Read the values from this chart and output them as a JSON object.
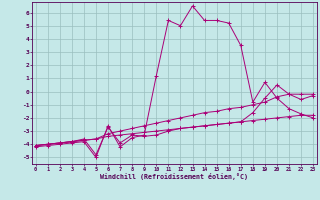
{
  "xlabel": "Windchill (Refroidissement éolien,°C)",
  "background_color": "#c5e8e8",
  "grid_color": "#9bbfbf",
  "line_color": "#aa0077",
  "x_ticks": [
    0,
    1,
    2,
    3,
    4,
    5,
    6,
    7,
    8,
    9,
    10,
    11,
    12,
    13,
    14,
    15,
    16,
    17,
    18,
    19,
    20,
    21,
    22,
    23
  ],
  "y_ticks": [
    -5,
    -4,
    -3,
    -2,
    -1,
    0,
    1,
    2,
    3,
    4,
    5,
    6
  ],
  "xlim": [
    -0.3,
    23.3
  ],
  "ylim": [
    -5.5,
    6.8
  ],
  "series": [
    {
      "x": [
        0,
        1,
        2,
        3,
        4,
        5,
        6,
        7,
        8,
        9,
        10,
        11,
        12,
        13,
        14,
        15,
        16,
        17,
        18,
        19,
        20,
        21,
        22,
        23
      ],
      "y": [
        -4.1,
        -4.0,
        -3.9,
        -3.8,
        -3.7,
        -3.6,
        -3.4,
        -3.3,
        -3.2,
        -3.1,
        -3.0,
        -2.9,
        -2.8,
        -2.7,
        -2.6,
        -2.5,
        -2.4,
        -2.3,
        -2.2,
        -2.1,
        -2.0,
        -1.9,
        -1.8,
        -1.8
      ]
    },
    {
      "x": [
        0,
        1,
        2,
        3,
        4,
        5,
        6,
        7,
        8,
        9,
        10,
        11,
        12,
        13,
        14,
        15,
        16,
        17,
        18,
        19,
        20,
        21,
        22,
        23
      ],
      "y": [
        -4.1,
        -4.0,
        -3.9,
        -3.8,
        -3.7,
        -3.6,
        -3.2,
        -3.0,
        -2.8,
        -2.6,
        -2.4,
        -2.2,
        -2.0,
        -1.8,
        -1.6,
        -1.5,
        -1.3,
        -1.2,
        -1.0,
        -0.8,
        -0.4,
        -0.2,
        -0.2,
        -0.2
      ]
    },
    {
      "x": [
        0,
        1,
        2,
        3,
        4,
        5,
        6,
        7,
        8,
        9,
        10,
        11,
        12,
        13,
        14,
        15,
        16,
        17,
        18,
        19,
        20,
        21,
        22,
        23
      ],
      "y": [
        -4.1,
        -4.0,
        -3.9,
        -3.8,
        -3.6,
        -4.8,
        -2.7,
        -3.9,
        -3.3,
        -3.4,
        -3.3,
        -3.0,
        -2.8,
        -2.7,
        -2.6,
        -2.5,
        -2.4,
        -2.3,
        -1.6,
        -0.5,
        0.5,
        -0.2,
        -0.6,
        -0.3
      ]
    },
    {
      "x": [
        0,
        1,
        2,
        3,
        4,
        5,
        6,
        7,
        8,
        9,
        10,
        11,
        12,
        13,
        14,
        15,
        16,
        17,
        18,
        19,
        20,
        21,
        22,
        23
      ],
      "y": [
        -4.2,
        -4.1,
        -4.0,
        -3.9,
        -3.8,
        -5.0,
        -2.6,
        -4.2,
        -3.5,
        -3.3,
        1.2,
        5.4,
        5.0,
        6.5,
        5.4,
        5.4,
        5.2,
        3.5,
        -0.8,
        0.7,
        -0.5,
        -1.3,
        -1.7,
        -2.0
      ]
    }
  ]
}
